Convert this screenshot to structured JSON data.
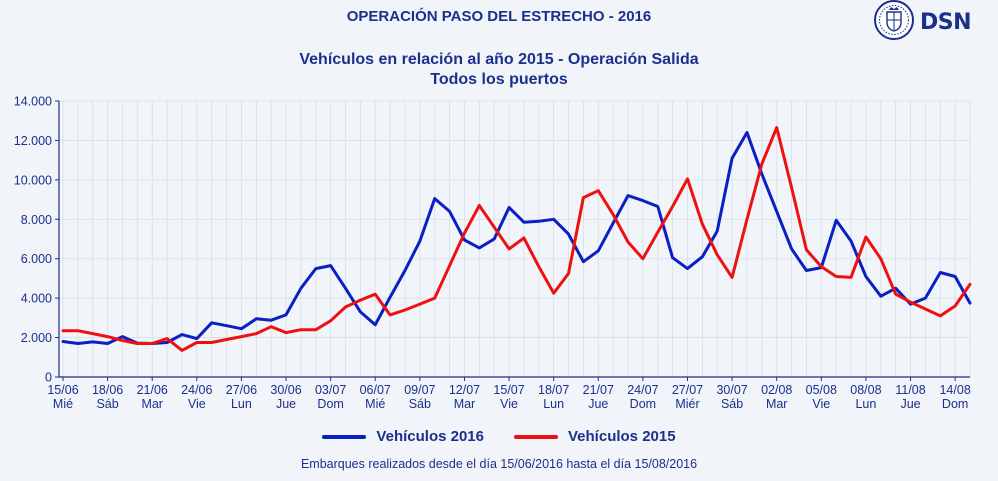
{
  "header": {
    "title": "OPERACIÓN PASO DEL ESTRECHO - 2016",
    "subtitle_line1": "Vehículos en relación al año 2015 - Operación Salida",
    "subtitle_line2": "Todos los puertos"
  },
  "logo": {
    "text": "DSN",
    "icon": "coat-of-arms-seal-icon"
  },
  "legend": {
    "series_2016": "Vehículos 2016",
    "series_2015": "Vehículos 2015"
  },
  "footnote": "Embarques realizados desde el día 15/06/2016 hasta el día 15/08/2016",
  "colors": {
    "series_2016": "#0a1fc4",
    "series_2015": "#ee1111",
    "text": "#1b2f8c",
    "grid": "#d8dee9"
  },
  "chart_data": {
    "type": "line",
    "ylim": [
      0,
      14000
    ],
    "y_tick_labels": [
      "0",
      "2.000",
      "4.000",
      "6.000",
      "8.000",
      "10.000",
      "12.000",
      "14.000"
    ],
    "grid": true,
    "legend_position": "bottom",
    "x_tick_labels": [
      {
        "day": "15/06",
        "dow": "Mié"
      },
      {
        "day": "18/06",
        "dow": "Sáb"
      },
      {
        "day": "21/06",
        "dow": "Mar"
      },
      {
        "day": "24/06",
        "dow": "Vie"
      },
      {
        "day": "27/06",
        "dow": "Lun"
      },
      {
        "day": "30/06",
        "dow": "Jue"
      },
      {
        "day": "03/07",
        "dow": "Dom"
      },
      {
        "day": "06/07",
        "dow": "Mié"
      },
      {
        "day": "09/07",
        "dow": "Sáb"
      },
      {
        "day": "12/07",
        "dow": "Mar"
      },
      {
        "day": "15/07",
        "dow": "Vie"
      },
      {
        "day": "18/07",
        "dow": "Lun"
      },
      {
        "day": "21/07",
        "dow": "Jue"
      },
      {
        "day": "24/07",
        "dow": "Dom"
      },
      {
        "day": "27/07",
        "dow": "Miér"
      },
      {
        "day": "30/07",
        "dow": "Sáb"
      },
      {
        "day": "02/08",
        "dow": "Mar"
      },
      {
        "day": "05/08",
        "dow": "Vie"
      },
      {
        "day": "08/08",
        "dow": "Lun"
      },
      {
        "day": "11/08",
        "dow": "Jue"
      },
      {
        "day": "14/08",
        "dow": "Dom"
      }
    ],
    "dates": [
      "15/06",
      "16/06",
      "17/06",
      "18/06",
      "19/06",
      "20/06",
      "21/06",
      "22/06",
      "23/06",
      "24/06",
      "25/06",
      "26/06",
      "27/06",
      "28/06",
      "29/06",
      "30/06",
      "01/07",
      "02/07",
      "03/07",
      "04/07",
      "05/07",
      "06/07",
      "07/07",
      "08/07",
      "09/07",
      "10/07",
      "11/07",
      "12/07",
      "13/07",
      "14/07",
      "15/07",
      "16/07",
      "17/07",
      "18/07",
      "19/07",
      "20/07",
      "21/07",
      "22/07",
      "23/07",
      "24/07",
      "25/07",
      "26/07",
      "27/07",
      "28/07",
      "29/07",
      "30/07",
      "31/07",
      "01/08",
      "02/08",
      "03/08",
      "04/08",
      "05/08",
      "06/08",
      "07/08",
      "08/08",
      "09/08",
      "10/08",
      "11/08",
      "12/08",
      "13/08",
      "14/08",
      "15/08"
    ],
    "series": [
      {
        "name": "Vehículos 2016",
        "color": "#0a1fc4",
        "values": [
          1800,
          1700,
          1780,
          1700,
          2050,
          1720,
          1700,
          1750,
          2150,
          1950,
          2750,
          2600,
          2450,
          2950,
          2880,
          3150,
          4500,
          5500,
          5650,
          4500,
          3300,
          2650,
          4050,
          5400,
          6900,
          9050,
          8400,
          6950,
          6550,
          7000,
          8600,
          7850,
          7900,
          8000,
          7250,
          5850,
          6400,
          7800,
          9200,
          8950,
          8650,
          6050,
          5500,
          6100,
          7400,
          11100,
          12400,
          10300,
          8400,
          6500,
          5400,
          5550,
          7950,
          6900,
          5100,
          4100,
          4500,
          3700,
          4000,
          5300,
          5100,
          3750
        ]
      },
      {
        "name": "Vehículos 2015",
        "color": "#ee1111",
        "values": [
          2350,
          2350,
          2200,
          2050,
          1850,
          1700,
          1700,
          1950,
          1350,
          1750,
          1750,
          1900,
          2050,
          2200,
          2550,
          2250,
          2400,
          2400,
          2850,
          3550,
          3900,
          4200,
          3150,
          3400,
          3700,
          4000,
          5650,
          7300,
          8700,
          7600,
          6500,
          7050,
          5600,
          4250,
          5250,
          9100,
          9450,
          8250,
          6850,
          6000,
          7350,
          8650,
          10050,
          7750,
          6200,
          5050,
          8000,
          10800,
          12650,
          9600,
          6450,
          5600,
          5100,
          5050,
          7100,
          6000,
          4200,
          3800,
          3450,
          3100,
          3600,
          4700
        ]
      }
    ]
  }
}
